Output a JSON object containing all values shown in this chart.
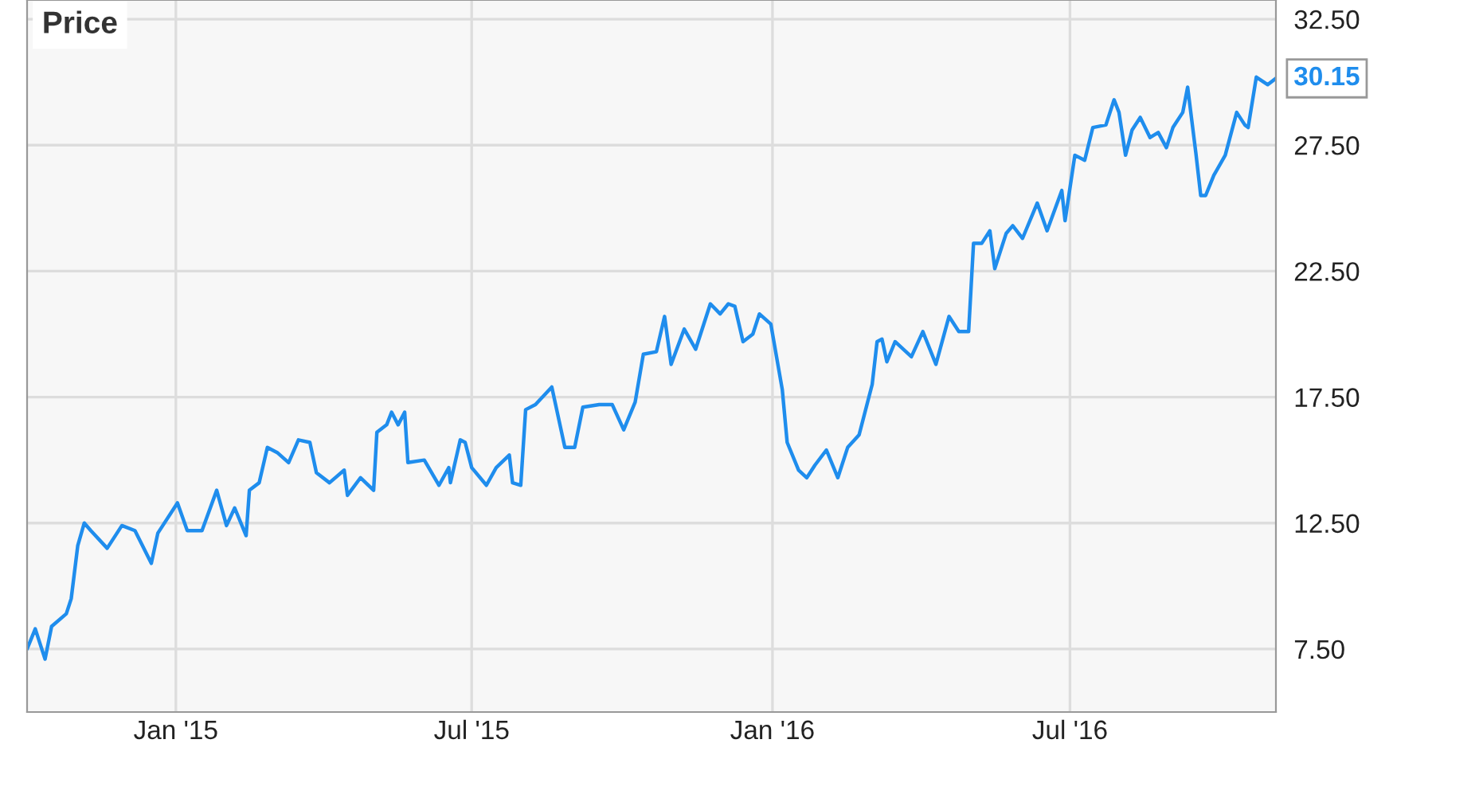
{
  "chart_data": {
    "type": "line",
    "title": "Price",
    "x": [
      "2014-10-02",
      "2014-10-07",
      "2014-10-13",
      "2014-10-17",
      "2014-10-26",
      "2014-10-29",
      "2014-11-02",
      "2014-11-06",
      "2014-11-10",
      "2014-11-20",
      "2014-11-29",
      "2014-12-07",
      "2014-12-17",
      "2014-12-21",
      "2015-01-02",
      "2015-01-08",
      "2015-01-17",
      "2015-01-26",
      "2015-02-01",
      "2015-02-06",
      "2015-02-13",
      "2015-02-15",
      "2015-02-21",
      "2015-02-26",
      "2015-03-04",
      "2015-03-11",
      "2015-03-17",
      "2015-03-24",
      "2015-03-28",
      "2015-04-05",
      "2015-04-14",
      "2015-04-16",
      "2015-04-24",
      "2015-05-02",
      "2015-05-04",
      "2015-05-10",
      "2015-05-13",
      "2015-05-17",
      "2015-05-21",
      "2015-05-23",
      "2015-06-02",
      "2015-06-11",
      "2015-06-17",
      "2015-06-18",
      "2015-06-24",
      "2015-06-27",
      "2015-07-01",
      "2015-07-10",
      "2015-07-16",
      "2015-07-24",
      "2015-07-26",
      "2015-07-31",
      "2015-08-03",
      "2015-08-09",
      "2015-08-19",
      "2015-08-27",
      "2015-09-02",
      "2015-09-07",
      "2015-09-17",
      "2015-09-25",
      "2015-10-02",
      "2015-10-09",
      "2015-10-14",
      "2015-10-22",
      "2015-10-27",
      "2015-10-31",
      "2015-11-08",
      "2015-11-15",
      "2015-11-24",
      "2015-11-30",
      "2015-12-05",
      "2015-12-09",
      "2015-12-14",
      "2015-12-20",
      "2015-12-24",
      "2015-12-31",
      "2016-01-07",
      "2016-01-10",
      "2016-01-17",
      "2016-01-22",
      "2016-01-27",
      "2016-02-03",
      "2016-02-10",
      "2016-02-16",
      "2016-02-23",
      "2016-03-02",
      "2016-03-05",
      "2016-03-08",
      "2016-03-11",
      "2016-03-16",
      "2016-03-26",
      "2016-04-02",
      "2016-04-10",
      "2016-04-18",
      "2016-04-24",
      "2016-04-30",
      "2016-05-03",
      "2016-05-08",
      "2016-05-13",
      "2016-05-16",
      "2016-05-23",
      "2016-05-27",
      "2016-06-02",
      "2016-06-11",
      "2016-06-17",
      "2016-06-26",
      "2016-06-28",
      "2016-07-04",
      "2016-07-10",
      "2016-07-15",
      "2016-07-23",
      "2016-07-28",
      "2016-07-31",
      "2016-08-04",
      "2016-08-08",
      "2016-08-13",
      "2016-08-19",
      "2016-08-24",
      "2016-08-29",
      "2016-09-02",
      "2016-09-08",
      "2016-09-11",
      "2016-09-16",
      "2016-09-19",
      "2016-09-22",
      "2016-09-27",
      "2016-10-04",
      "2016-10-11",
      "2016-10-16",
      "2016-10-18",
      "2016-10-23",
      "2016-10-30",
      "2016-11-04"
    ],
    "series": [
      {
        "color": "#1f8ded",
        "values": [
          7.5,
          8.3,
          7.1,
          8.4,
          8.9,
          9.5,
          11.6,
          12.5,
          12.2,
          11.5,
          12.4,
          12.2,
          10.9,
          12.1,
          13.3,
          12.2,
          12.2,
          13.8,
          12.4,
          13.1,
          12.0,
          13.8,
          14.1,
          15.5,
          15.3,
          14.9,
          15.8,
          15.7,
          14.5,
          14.1,
          14.6,
          13.6,
          14.3,
          13.8,
          16.1,
          16.4,
          16.9,
          16.4,
          16.9,
          14.9,
          15.0,
          14.0,
          14.7,
          14.1,
          15.8,
          15.7,
          14.7,
          14.0,
          14.7,
          15.2,
          14.1,
          14.0,
          17.0,
          17.2,
          17.9,
          15.5,
          15.5,
          17.1,
          17.2,
          17.2,
          16.2,
          17.3,
          19.2,
          19.3,
          20.7,
          18.8,
          20.2,
          19.4,
          21.2,
          20.8,
          21.2,
          21.1,
          19.7,
          20.0,
          20.8,
          20.4,
          17.8,
          15.7,
          14.6,
          14.3,
          14.8,
          15.4,
          14.3,
          15.5,
          16.0,
          18.0,
          19.7,
          19.8,
          18.9,
          19.7,
          19.1,
          20.1,
          18.8,
          20.7,
          20.1,
          20.1,
          23.6,
          23.6,
          24.1,
          22.6,
          24.0,
          24.3,
          23.8,
          25.2,
          24.1,
          25.7,
          24.5,
          27.1,
          26.9,
          28.2,
          28.3,
          29.3,
          28.8,
          27.1,
          28.1,
          28.6,
          27.8,
          28.0,
          27.4,
          28.2,
          28.8,
          29.8,
          27.2,
          25.5,
          25.5,
          26.3,
          27.1,
          28.8,
          28.3,
          28.2,
          30.2,
          29.9,
          30.15
        ]
      }
    ],
    "xlim": [
      "2014-10-02",
      "2016-11-04"
    ],
    "xticks": [
      {
        "value": "2015-01-01",
        "label": "Jan '15"
      },
      {
        "value": "2015-07-01",
        "label": "Jul '15"
      },
      {
        "value": "2016-01-01",
        "label": "Jan '16"
      },
      {
        "value": "2016-07-01",
        "label": "Jul '16"
      }
    ],
    "ylim": [
      5.0,
      33.26
    ],
    "yticks": [
      {
        "value": 7.5,
        "label": "7.50"
      },
      {
        "value": 12.5,
        "label": "12.50"
      },
      {
        "value": 17.5,
        "label": "17.50"
      },
      {
        "value": 22.5,
        "label": "22.50"
      },
      {
        "value": 27.5,
        "label": "27.50"
      },
      {
        "value": 32.5,
        "label": "32.50"
      }
    ],
    "annotations": [
      {
        "text": "30.15",
        "x": "2016-11-04",
        "y": 30.15
      }
    ],
    "grid": true,
    "legend": false
  }
}
